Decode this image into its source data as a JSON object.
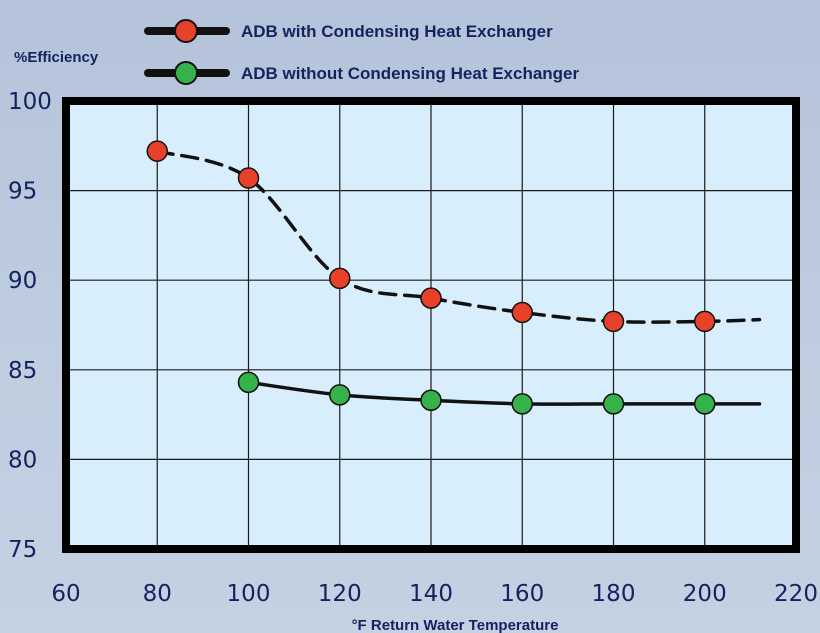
{
  "chart_data": {
    "type": "line",
    "ylabel": "%Efficiency",
    "xlabel": "°F Return Water Temperature",
    "xlim": [
      60,
      220
    ],
    "ylim": [
      75,
      100
    ],
    "x_ticks": [
      "60",
      "80",
      "100",
      "120",
      "140",
      "160",
      "180",
      "200",
      "220"
    ],
    "y_ticks": [
      "100",
      "95",
      "90",
      "85",
      "80",
      "75"
    ],
    "grid": true,
    "legend_position": "top",
    "series": [
      {
        "name": "ADB with Condensing Heat Exchanger",
        "marker_color": "#e8412a",
        "line_style": "dashed",
        "x": [
          80,
          100,
          120,
          140,
          160,
          180,
          200
        ],
        "y": [
          97.2,
          95.7,
          90.1,
          89.0,
          88.2,
          87.7,
          87.7
        ],
        "trend_end": [
          212,
          87.8
        ]
      },
      {
        "name": "ADB without Condensing Heat Exchanger",
        "marker_color": "#35b34a",
        "line_style": "solid",
        "x": [
          100,
          120,
          140,
          160,
          180,
          200
        ],
        "y": [
          84.3,
          83.6,
          83.3,
          83.1,
          83.1,
          83.1
        ],
        "trend_end": [
          212,
          83.1
        ]
      }
    ]
  },
  "colors": {
    "plot_bg": "#d8eefc",
    "frame": "#000000",
    "text": "#13235e",
    "curve": "#111111"
  }
}
